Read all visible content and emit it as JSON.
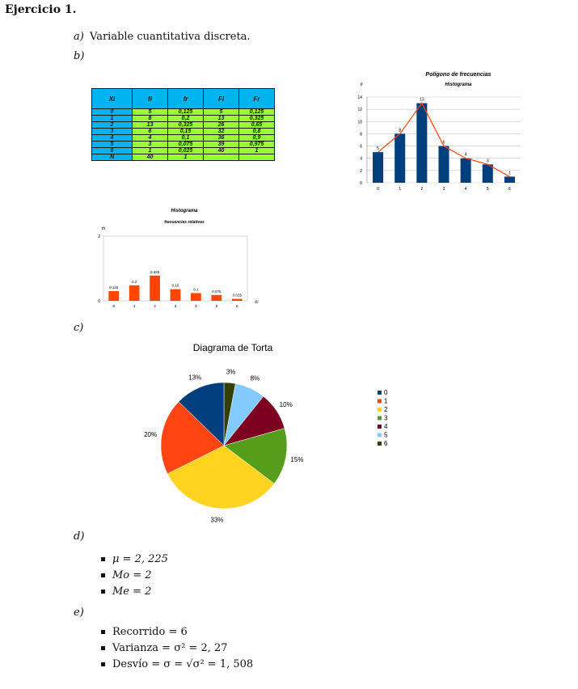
{
  "header": {
    "title": "Ejercicio 1."
  },
  "items": {
    "a": {
      "label": "a)",
      "text": "Variable cuantitativa discreta."
    },
    "b": {
      "label": "b)"
    },
    "c": {
      "label": "c)"
    },
    "d": {
      "label": "d)"
    },
    "e": {
      "label": "e)"
    }
  },
  "table": {
    "headers": [
      "Xi",
      "fi",
      "fr",
      "Fi",
      "Fr"
    ],
    "rows": [
      [
        "0",
        "5",
        "0,125",
        "5",
        "0,125"
      ],
      [
        "1",
        "8",
        "0,2",
        "13",
        "0,325"
      ],
      [
        "2",
        "13",
        "0,325",
        "26",
        "0,65"
      ],
      [
        "3",
        "6",
        "0,15",
        "32",
        "0,8"
      ],
      [
        "4",
        "4",
        "0,1",
        "36",
        "0,9"
      ],
      [
        "5",
        "3",
        "0,075",
        "39",
        "0,975"
      ],
      [
        "6",
        "1",
        "0,025",
        "40",
        "1"
      ],
      [
        "N",
        "40",
        "1",
        "",
        ""
      ]
    ]
  },
  "chart_data": [
    {
      "type": "bar",
      "title": "Polígono de frecuencias",
      "subtitle": "Histograma",
      "ylabel": "fi",
      "categories": [
        "0",
        "1",
        "2",
        "3",
        "4",
        "5",
        "6"
      ],
      "values": [
        5,
        8,
        13,
        6,
        4,
        3,
        1
      ],
      "overlay": "line",
      "ylim": [
        0,
        14
      ],
      "yticks": [
        0,
        2,
        4,
        6,
        8,
        10,
        12,
        14
      ],
      "grid": true,
      "bar_color": "#003e7e",
      "line_color": "#ff4500"
    },
    {
      "type": "bar",
      "title": "Histograma",
      "subtitle": "frecuencias relativas",
      "ylabel": "fri",
      "xlabel": "Xi",
      "categories": [
        "0",
        "1",
        "2",
        "3",
        "4",
        "5",
        "6"
      ],
      "values": [
        0.125,
        0.2,
        0.325,
        0.15,
        0.1,
        0.075,
        0.025
      ],
      "value_labels": [
        "0.125",
        "0.2",
        "0.325",
        "0.15",
        "0.1",
        "0.075",
        "0.025"
      ],
      "ylim": [
        0,
        2
      ],
      "yticks": [
        0,
        2
      ],
      "bar_color": "#ff4500"
    },
    {
      "type": "pie",
      "title": "Diagrama de Torta",
      "labels": [
        "0",
        "1",
        "2",
        "3",
        "4",
        "5",
        "6"
      ],
      "values": [
        13,
        20,
        33,
        15,
        10,
        8,
        3
      ],
      "value_labels": [
        "13%",
        "20%",
        "33%",
        "15%",
        "10%",
        "8%",
        "3%"
      ],
      "colors": [
        "#003e7e",
        "#ff4512",
        "#ffd320",
        "#579d1c",
        "#7e0021",
        "#83caff",
        "#314004"
      ],
      "legend": "right"
    }
  ],
  "stats_d": [
    "μ = 2, 225",
    "Mo = 2",
    "Me = 2"
  ],
  "stats_e": [
    "Recorrido = 6",
    "Varianza = σ² = 2, 27",
    "Desvío = σ = √σ² = 1, 508"
  ]
}
